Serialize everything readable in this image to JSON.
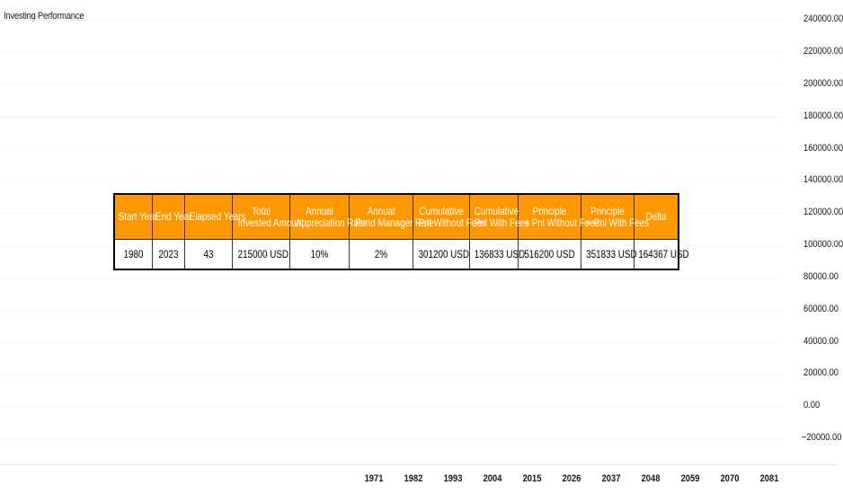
{
  "indicator": {
    "title": "Investing Performance"
  },
  "price_axis": {
    "labels": [
      "240000.00",
      "220000.00",
      "200000.00",
      "180000.00",
      "160000.00",
      "140000.00",
      "120000.00",
      "100000.00",
      "80000.00",
      "60000.00",
      "40000.00",
      "20000.00",
      "0.00",
      "−20000.00"
    ]
  },
  "time_axis": {
    "labels": [
      "1971",
      "1982",
      "1993",
      "2004",
      "2015",
      "2026",
      "2037",
      "2048",
      "2059",
      "2070",
      "2081"
    ]
  },
  "table": {
    "headers": [
      [
        "Start Year"
      ],
      [
        "End Year"
      ],
      [
        "Elapsed Years"
      ],
      [
        "Total",
        "Invested Amount"
      ],
      [
        "Annual",
        "Appreciation Rate"
      ],
      [
        "Annual",
        "Fund Manager Rate"
      ],
      [
        "Cumulative",
        "Pnl Without Fees"
      ],
      [
        "Cumulative",
        "Pnl With Fees"
      ],
      [
        "Principle",
        "+ Pnl Without Fees"
      ],
      [
        "Principle",
        "+ Pnl With Fees"
      ],
      [
        "Delta"
      ]
    ],
    "row": [
      "1980",
      "2023",
      "43",
      "215000 USD",
      "10%",
      "2%",
      "301200 USD",
      "136833 USD",
      "516200 USD",
      "351833 USD",
      "164367 USD"
    ]
  },
  "colors": {
    "header_bg": "#ff9800",
    "header_text": "#ffffff",
    "cell_bg": "#ffffff",
    "border": "#333333"
  }
}
